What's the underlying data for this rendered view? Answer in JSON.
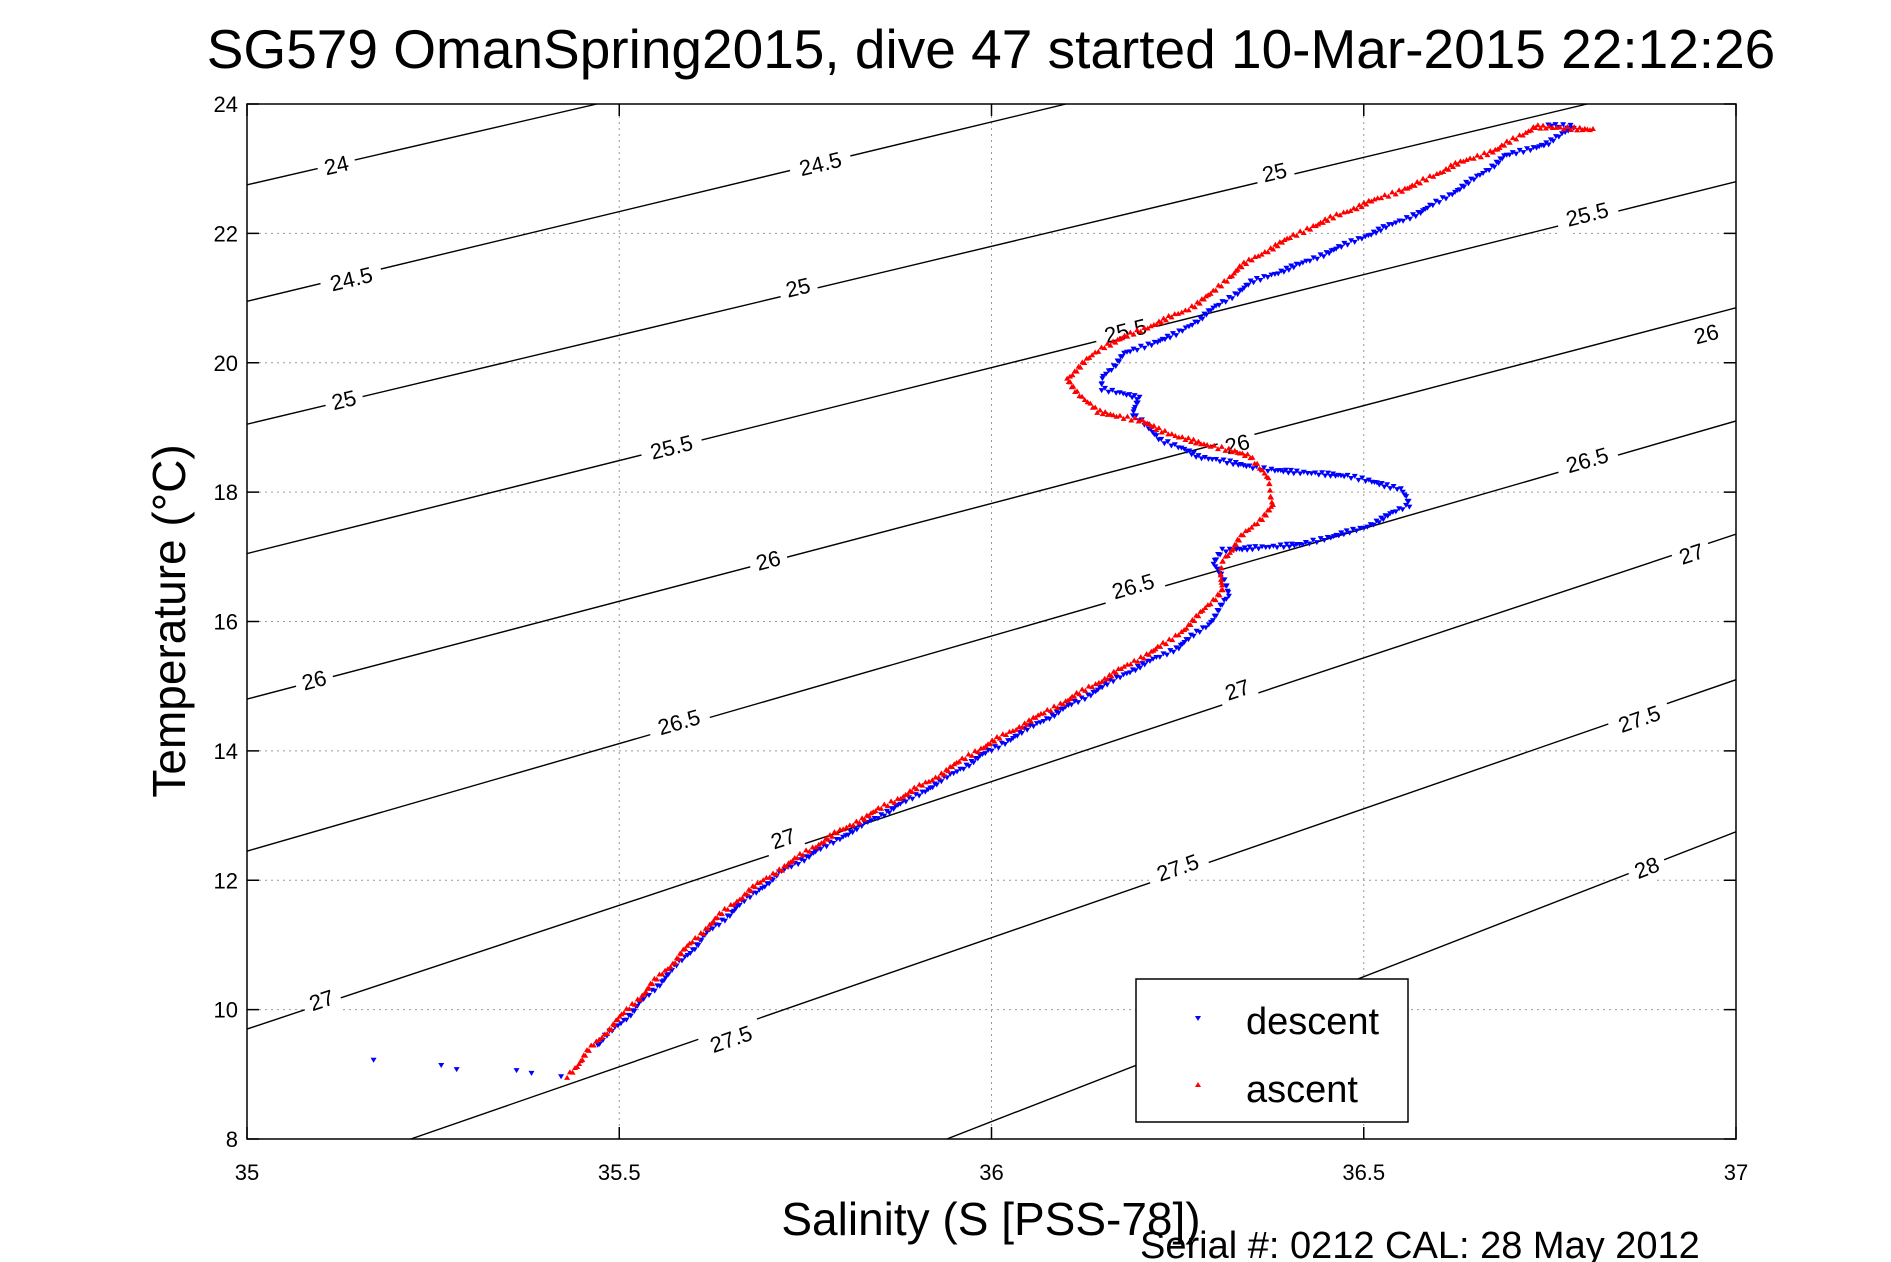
{
  "chart_data": {
    "type": "scatter",
    "title": "SG579 OmanSpring2015, dive 47 started 10-Mar-2015 22:12:26",
    "xlabel": "Salinity (S [PSS-78])",
    "ylabel": "Temperature (°C)",
    "xlim": [
      35,
      37
    ],
    "ylim": [
      8,
      24
    ],
    "xticks": [
      "35",
      "35.5",
      "36",
      "36.5",
      "37"
    ],
    "yticks": [
      "8",
      "10",
      "12",
      "14",
      "16",
      "18",
      "20",
      "22",
      "24"
    ],
    "grid": true,
    "legend_position": "bottom-right",
    "footer": "Serial #: 0212  CAL: 28 May 2012",
    "contours": [
      {
        "label": "24",
        "points": [
          [
            35,
            22.75
          ],
          [
            35.47,
            24
          ]
        ],
        "labels_at": [
          [
            35.12,
            23.06
          ]
        ]
      },
      {
        "label": "24.5",
        "points": [
          [
            35,
            20.95
          ],
          [
            36.1,
            24
          ]
        ],
        "labels_at": [
          [
            35.14,
            21.3
          ],
          [
            35.77,
            23.08
          ]
        ]
      },
      {
        "label": "25",
        "points": [
          [
            35,
            19.05
          ],
          [
            36.8,
            24
          ]
        ],
        "labels_at": [
          [
            35.13,
            19.43
          ],
          [
            35.74,
            21.17
          ],
          [
            36.38,
            22.95
          ]
        ]
      },
      {
        "label": "25.5",
        "points": [
          [
            35,
            17.05
          ],
          [
            37,
            22.8
          ]
        ],
        "labels_at": [
          [
            35.57,
            18.7
          ],
          [
            36.18,
            20.5
          ],
          [
            36.8,
            22.3
          ]
        ]
      },
      {
        "label": "26",
        "points": [
          [
            35,
            14.8
          ],
          [
            37,
            20.85
          ]
        ],
        "labels_at": [
          [
            35.09,
            15.1
          ],
          [
            35.7,
            16.95
          ],
          [
            36.33,
            18.75
          ],
          [
            36.96,
            20.45
          ]
        ]
      },
      {
        "label": "26.5",
        "points": [
          [
            35,
            12.45
          ],
          [
            37,
            19.1
          ]
        ],
        "labels_at": [
          [
            35.58,
            14.45
          ],
          [
            36.19,
            16.55
          ],
          [
            36.8,
            18.5
          ]
        ]
      },
      {
        "label": "27",
        "points": [
          [
            35,
            9.7
          ],
          [
            37,
            17.35
          ]
        ],
        "labels_at": [
          [
            35.1,
            10.15
          ],
          [
            35.72,
            12.65
          ],
          [
            36.33,
            14.95
          ],
          [
            36.94,
            17.05
          ]
        ]
      },
      {
        "label": "27.5",
        "points": [
          [
            35.22,
            8
          ],
          [
            37,
            15.1
          ]
        ],
        "labels_at": [
          [
            35.65,
            9.55
          ],
          [
            36.25,
            12.2
          ],
          [
            36.87,
            14.5
          ]
        ]
      },
      {
        "label": "28",
        "points": [
          [
            35.94,
            8
          ],
          [
            37,
            12.75
          ]
        ],
        "labels_at": [
          [
            36.88,
            12.2
          ]
        ]
      }
    ],
    "series": [
      {
        "name": "descent",
        "color": "#0000ff",
        "marker": "triangle-down",
        "points": [
          [
            35.17,
            9.25
          ],
          [
            35.26,
            9.12
          ],
          [
            35.28,
            9.1
          ],
          [
            35.36,
            9.05
          ],
          [
            35.38,
            9.03
          ],
          [
            35.42,
            8.97
          ],
          [
            35.47,
            9.45
          ],
          [
            35.52,
            10.0
          ],
          [
            35.57,
            10.6
          ],
          [
            35.62,
            11.2
          ],
          [
            35.67,
            11.7
          ],
          [
            35.72,
            12.15
          ],
          [
            35.78,
            12.55
          ],
          [
            35.85,
            13.0
          ],
          [
            35.92,
            13.45
          ],
          [
            35.99,
            13.95
          ],
          [
            36.05,
            14.35
          ],
          [
            36.12,
            14.8
          ],
          [
            36.18,
            15.2
          ],
          [
            36.25,
            15.6
          ],
          [
            36.29,
            15.95
          ],
          [
            36.32,
            16.4
          ],
          [
            36.3,
            16.9
          ],
          [
            36.31,
            17.1
          ],
          [
            36.42,
            17.2
          ],
          [
            36.5,
            17.45
          ],
          [
            36.56,
            17.8
          ],
          [
            36.55,
            18.05
          ],
          [
            36.48,
            18.25
          ],
          [
            36.37,
            18.35
          ],
          [
            36.28,
            18.55
          ],
          [
            36.23,
            18.8
          ],
          [
            36.19,
            19.2
          ],
          [
            36.2,
            19.45
          ],
          [
            36.15,
            19.6
          ],
          [
            36.15,
            19.8
          ],
          [
            36.18,
            20.15
          ],
          [
            36.25,
            20.45
          ],
          [
            36.3,
            20.85
          ],
          [
            36.35,
            21.25
          ],
          [
            36.42,
            21.55
          ],
          [
            36.5,
            21.95
          ],
          [
            36.58,
            22.35
          ],
          [
            36.65,
            22.85
          ],
          [
            36.69,
            23.2
          ],
          [
            36.75,
            23.4
          ],
          [
            36.78,
            23.65
          ],
          [
            36.75,
            23.68
          ]
        ]
      },
      {
        "name": "ascent",
        "color": "#ff0000",
        "marker": "triangle-up",
        "points": [
          [
            35.43,
            8.97
          ],
          [
            35.47,
            9.5
          ],
          [
            35.52,
            10.1
          ],
          [
            35.57,
            10.7
          ],
          [
            35.62,
            11.3
          ],
          [
            35.67,
            11.8
          ],
          [
            35.72,
            12.2
          ],
          [
            35.78,
            12.65
          ],
          [
            35.85,
            13.1
          ],
          [
            35.92,
            13.55
          ],
          [
            35.98,
            14.0
          ],
          [
            36.05,
            14.45
          ],
          [
            36.12,
            14.9
          ],
          [
            36.18,
            15.3
          ],
          [
            36.24,
            15.7
          ],
          [
            36.28,
            16.1
          ],
          [
            36.31,
            16.5
          ],
          [
            36.31,
            16.95
          ],
          [
            36.34,
            17.35
          ],
          [
            36.38,
            17.8
          ],
          [
            36.37,
            18.2
          ],
          [
            36.35,
            18.55
          ],
          [
            36.3,
            18.7
          ],
          [
            36.25,
            18.85
          ],
          [
            36.2,
            19.1
          ],
          [
            36.14,
            19.25
          ],
          [
            36.12,
            19.5
          ],
          [
            36.1,
            19.75
          ],
          [
            36.12,
            19.95
          ],
          [
            36.15,
            20.25
          ],
          [
            36.2,
            20.5
          ],
          [
            36.26,
            20.8
          ],
          [
            36.3,
            21.1
          ],
          [
            36.33,
            21.45
          ],
          [
            36.38,
            21.8
          ],
          [
            36.43,
            22.1
          ],
          [
            36.5,
            22.45
          ],
          [
            36.57,
            22.75
          ],
          [
            36.62,
            23.05
          ],
          [
            36.68,
            23.3
          ],
          [
            36.73,
            23.65
          ],
          [
            36.81,
            23.6
          ]
        ]
      }
    ]
  }
}
